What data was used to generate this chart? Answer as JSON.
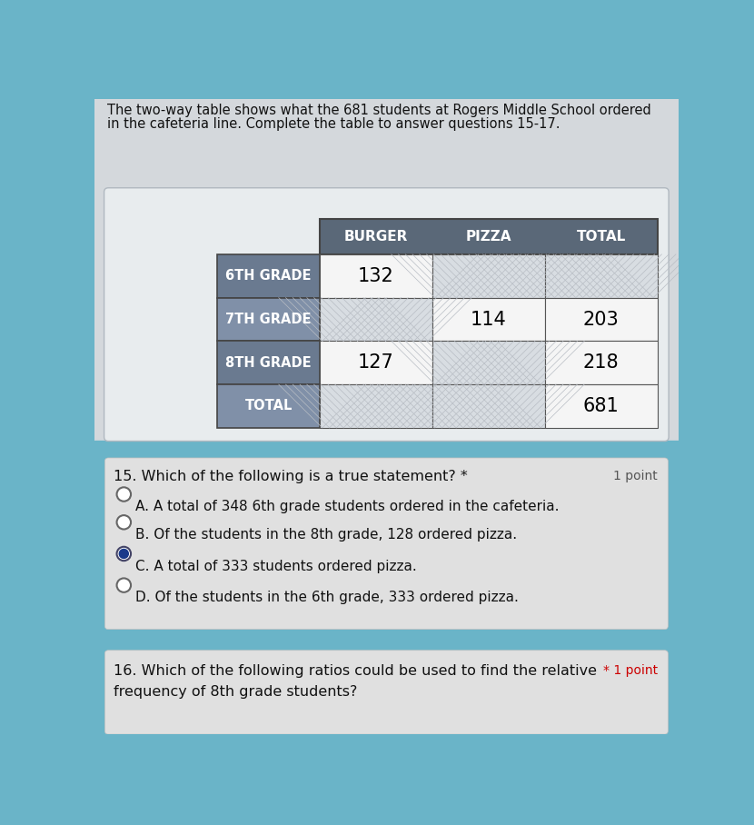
{
  "header_text_line1": "The two-way table shows what the 681 students at Rogers Middle School ordered",
  "header_text_line2": "in the cafeteria line. Complete the table to answer questions 15-17.",
  "table": {
    "col_headers": [
      "BURGER",
      "PIZZA",
      "TOTAL"
    ],
    "row_headers": [
      "6TH GRADE",
      "7TH GRADE",
      "8TH GRADE",
      "TOTAL"
    ],
    "superscripts": [
      "TH",
      "TH",
      "TH",
      ""
    ],
    "row_prefix": [
      "6",
      "7",
      "8",
      ""
    ],
    "cells": [
      [
        "132",
        "",
        ""
      ],
      [
        "",
        "114",
        "203"
      ],
      [
        "127",
        "",
        "218"
      ],
      [
        "",
        "",
        "681"
      ]
    ]
  },
  "col_header_bg": "#5a6878",
  "row_header_bg_dark": "#6a7a90",
  "row_header_bg_light": "#8090a8",
  "cell_white": "#f5f5f5",
  "cell_empty_light": "#d8dde2",
  "cell_empty_hatched": "#c8cdd4",
  "bg_teal": "#6ab4c8",
  "bg_gray_panel": "#d4d8dc",
  "bg_white_panel": "#e8ecee",
  "bg_question_panel": "#e0e0e0",
  "bg_bottom_teal": "#7abccc",
  "q15_text": "15. Which of the following is a true statement? *",
  "q15_point": "1 point",
  "q15_options": [
    "A. A total of 348 6th grade students ordered in the cafeteria.",
    "B. Of the students in the 8th grade, 128 ordered pizza.",
    "C. A total of 333 students ordered pizza.",
    "D. Of the students in the 6th grade, 333 ordered pizza."
  ],
  "q15_selected": 2,
  "q16_line1": "16. Which of the following ratios could be used to find the relative",
  "q16_line2": "frequency of 8th grade students?",
  "q16_point": "* 1 point"
}
